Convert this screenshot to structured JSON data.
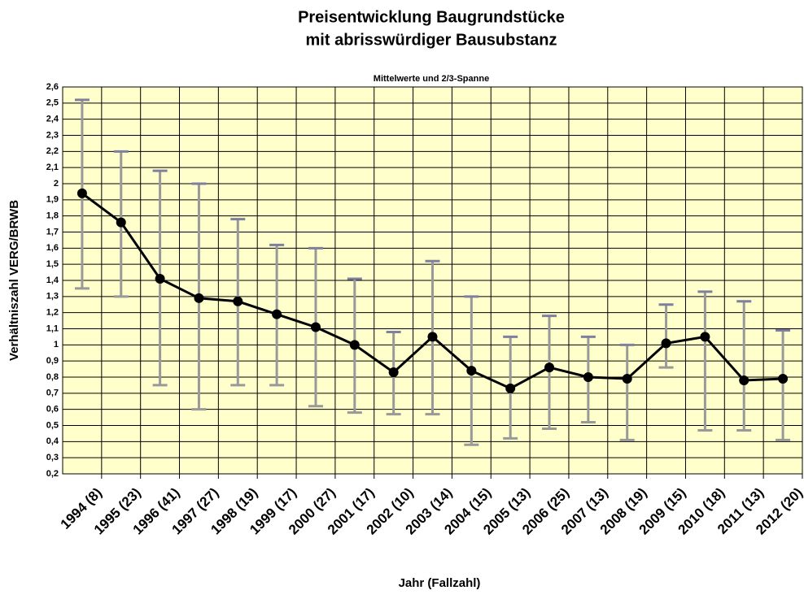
{
  "chart_data": {
    "type": "line",
    "title": [
      "Preisentwicklung  Baugrundstücke",
      "mit abrisswürdiger  Bausubstanz"
    ],
    "subtitle": "Mittelwerte und 2/3-Spanne",
    "y_label": "Verhältniszahl VERG/BRWB",
    "x_label": "Jahr (Fallzahl)",
    "categories": [
      "1994 (8)",
      "1995 (23)",
      "1996 (41)",
      "1997 (27)",
      "1998 (19)",
      "1999 (17)",
      "2000 (27)",
      "2001 (17)",
      "2002 (10)",
      "2003 (14)",
      "2004 (15)",
      "2005 (13)",
      "2006 (25)",
      "2007 (13)",
      "2008 (19)",
      "2009 (15)",
      "2010 (18)",
      "2011 (13)",
      "2012 (20)"
    ],
    "series": [
      {
        "color": "#000000",
        "values": [
          1.94,
          1.76,
          1.41,
          1.29,
          1.27,
          1.19,
          1.11,
          1.0,
          0.83,
          1.05,
          0.84,
          0.73,
          0.86,
          0.8,
          0.79,
          1.01,
          1.05,
          0.78,
          0.79
        ],
        "upper": [
          2.52,
          2.2,
          2.08,
          2.0,
          1.78,
          1.62,
          1.6,
          1.41,
          1.08,
          1.52,
          1.3,
          1.05,
          1.18,
          1.05,
          1.0,
          1.25,
          1.33,
          1.27,
          1.09
        ],
        "lower": [
          1.35,
          1.3,
          0.75,
          0.6,
          0.75,
          0.75,
          0.62,
          0.58,
          0.57,
          0.57,
          0.38,
          0.42,
          0.48,
          0.52,
          0.41,
          0.86,
          0.47,
          0.47,
          0.41
        ]
      }
    ],
    "ylim": [
      0.2,
      2.6
    ],
    "yticks": [
      {
        "value": 0.2,
        "label": "0,2"
      },
      {
        "value": 0.3,
        "label": "0,3"
      },
      {
        "value": 0.4,
        "label": "0,4"
      },
      {
        "value": 0.5,
        "label": "0,5"
      },
      {
        "value": 0.6,
        "label": "0,6"
      },
      {
        "value": 0.7,
        "label": "0,7"
      },
      {
        "value": 0.8,
        "label": "0,8"
      },
      {
        "value": 0.9,
        "label": "0,9"
      },
      1,
      {
        "value": 1.1,
        "label": "1,1"
      },
      {
        "value": 1.2,
        "label": "1,2"
      },
      {
        "value": 1.3,
        "label": "1,3"
      },
      {
        "value": 1.4,
        "label": "1,4"
      },
      {
        "value": 1.5,
        "label": "1,5"
      },
      {
        "value": 1.6,
        "label": "1,6"
      },
      {
        "value": 1.7,
        "label": "1,7"
      },
      {
        "value": 1.8,
        "label": "1,8"
      },
      {
        "value": 1.9,
        "label": "1,9"
      },
      2,
      {
        "value": 2.1,
        "label": "2,1"
      },
      {
        "value": 2.2,
        "label": "2,2"
      },
      {
        "value": 2.3,
        "label": "2,3"
      },
      {
        "value": 2.4,
        "label": "2,4"
      },
      {
        "value": 2.5,
        "label": "2,5"
      },
      {
        "value": 2.6,
        "label": "2,6"
      }
    ],
    "grid": true,
    "plot_background": "#ffffcc",
    "error_color": "#999999",
    "cap_color": "#7f7f9f"
  }
}
